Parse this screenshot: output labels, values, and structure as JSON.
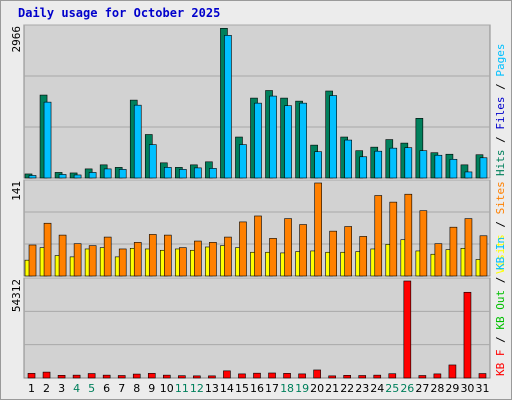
{
  "title": "Daily usage for October 2025",
  "colors": {
    "frame": "#ececec",
    "plot_bg": "#d2d2d2",
    "grid": "#a8a8a8",
    "hits": "#00805c",
    "files": "#00c0ff",
    "pages": "#00c0ff",
    "visits": "#ffff00",
    "sites": "#ff8000",
    "kbin": "#00c0ff",
    "kbout": "#00c000",
    "kbf": "#ff0000",
    "weekday": "#000000",
    "weekend": "#00805c",
    "title": "#0000cc"
  },
  "chart_data": {
    "type": "bar",
    "categories": [
      "1",
      "2",
      "3",
      "4",
      "5",
      "6",
      "7",
      "8",
      "9",
      "10",
      "11",
      "12",
      "13",
      "14",
      "15",
      "16",
      "17",
      "18",
      "19",
      "20",
      "21",
      "22",
      "23",
      "24",
      "25",
      "26",
      "27",
      "28",
      "29",
      "30",
      "31"
    ],
    "weekend_days": [
      "4",
      "5",
      "11",
      "12",
      "18",
      "19",
      "25",
      "26"
    ],
    "panels": [
      {
        "id": "hits-files",
        "scale_label": "2966",
        "ymax": 2966,
        "legend": [
          {
            "text": "Hits",
            "color": "#00805c"
          },
          {
            "text": "Files",
            "color": "#0000cc"
          },
          {
            "text": "Pages",
            "color": "#00c0ff"
          }
        ],
        "series": [
          {
            "name": "Hits",
            "color": "#00805c",
            "values": [
              80,
              1640,
              110,
              100,
              180,
              260,
              210,
              1540,
              860,
              300,
              210,
              260,
              320,
              2960,
              810,
              1580,
              1730,
              1580,
              1520,
              650,
              1720,
              810,
              540,
              610,
              760,
              690,
              1180,
              500,
              470,
              260,
              460
            ]
          },
          {
            "name": "Files",
            "color": "#00c0ff",
            "values": [
              50,
              1500,
              70,
              60,
              110,
              180,
              170,
              1440,
              660,
              210,
              170,
              200,
              190,
              2820,
              660,
              1480,
              1620,
              1430,
              1480,
              520,
              1630,
              750,
              420,
              530,
              590,
              600,
              540,
              450,
              370,
              120,
              400
            ]
          }
        ]
      },
      {
        "id": "visits-sites",
        "scale_label": "141",
        "ymax": 141,
        "legend": [
          {
            "text": "Visits",
            "color": "#ffff00"
          },
          {
            "text": "Sites",
            "color": "#ff8000"
          }
        ],
        "series": [
          {
            "name": "Visits",
            "color": "#ffff00",
            "values": [
              24,
              43,
              31,
              29,
              41,
              43,
              29,
              42,
              41,
              39,
              41,
              39,
              44,
              46,
              43,
              36,
              36,
              35,
              37,
              38,
              36,
              36,
              37,
              41,
              48,
              55,
              38,
              33,
              40,
              42,
              25
            ]
          },
          {
            "name": "Sites",
            "color": "#ff8000",
            "values": [
              47,
              80,
              62,
              49,
              46,
              59,
              41,
              51,
              63,
              62,
              43,
              53,
              51,
              59,
              82,
              91,
              57,
              87,
              78,
              141,
              68,
              75,
              60,
              122,
              112,
              124,
              99,
              49,
              74,
              87,
              61
            ]
          }
        ]
      },
      {
        "id": "kbytes",
        "scale_label": "54312",
        "ymax": 54312,
        "legend": [
          {
            "text": "KB F",
            "color": "#ff0000"
          },
          {
            "text": "KB Out",
            "color": "#00c000"
          },
          {
            "text": "KB In",
            "color": "#00c0ff"
          }
        ],
        "series": [
          {
            "name": "KB F",
            "color": "#ff0000",
            "values": [
              2600,
              3300,
              1500,
              1600,
              2500,
              1600,
              1400,
              2200,
              2600,
              1600,
              1300,
              1200,
              1200,
              4000,
              2300,
              2700,
              2800,
              2600,
              2300,
              4500,
              1200,
              1500,
              1400,
              1600,
              2400,
              54312,
              1400,
              2300,
              7300,
              48000,
              2500
            ]
          }
        ]
      }
    ]
  }
}
